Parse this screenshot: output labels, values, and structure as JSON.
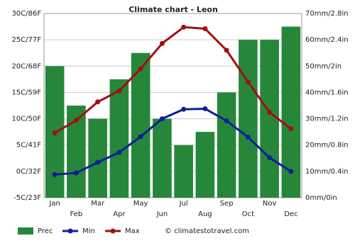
{
  "chart_data": {
    "type": "bar",
    "title": "Climate chart - Leon",
    "categories": [
      "Jan",
      "Feb",
      "Mar",
      "Apr",
      "May",
      "Jun",
      "Jul",
      "Aug",
      "Sep",
      "Oct",
      "Nov",
      "Dec"
    ],
    "series": [
      {
        "name": "Prec",
        "type": "bar",
        "axis": "y2",
        "color": "#26873a",
        "values": [
          50,
          35,
          30,
          45,
          55,
          30,
          20,
          25,
          40,
          60,
          60,
          65
        ]
      },
      {
        "name": "Min",
        "type": "line",
        "color": "#0d1f96",
        "values": [
          -0.6,
          -0.3,
          1.7,
          3.6,
          6.6,
          10,
          11.8,
          11.9,
          9.6,
          6.5,
          2.6,
          0
        ]
      },
      {
        "name": "Max",
        "type": "line",
        "color": "#a01010",
        "values": [
          7.3,
          9.7,
          13.2,
          15.3,
          19.5,
          24.3,
          27.4,
          27.1,
          23,
          17,
          11.2,
          8.1
        ]
      }
    ],
    "ylim": [
      -5,
      30
    ],
    "yticks": [
      {
        "value": -5,
        "label": "-5C/23F"
      },
      {
        "value": 0,
        "label": "0C/32F"
      },
      {
        "value": 5,
        "label": "5C/41F"
      },
      {
        "value": 10,
        "label": "10C/50F"
      },
      {
        "value": 15,
        "label": "15C/59F"
      },
      {
        "value": 20,
        "label": "20C/68F"
      },
      {
        "value": 25,
        "label": "25C/77F"
      },
      {
        "value": 30,
        "label": "30C/86F"
      }
    ],
    "y2lim": [
      0,
      70
    ],
    "y2ticks": [
      {
        "value": 0,
        "label": "0mm/0in"
      },
      {
        "value": 10,
        "label": "10mm/0.4in"
      },
      {
        "value": 20,
        "label": "20mm/0.8in"
      },
      {
        "value": 30,
        "label": "30mm/1.2in"
      },
      {
        "value": 40,
        "label": "40mm/1.6in"
      },
      {
        "value": 50,
        "label": "50mm/2in"
      },
      {
        "value": 60,
        "label": "60mm/2.4in"
      },
      {
        "value": 70,
        "label": "70mm/2.8in"
      }
    ],
    "grid": true,
    "source": "© climatestotravel.com"
  }
}
